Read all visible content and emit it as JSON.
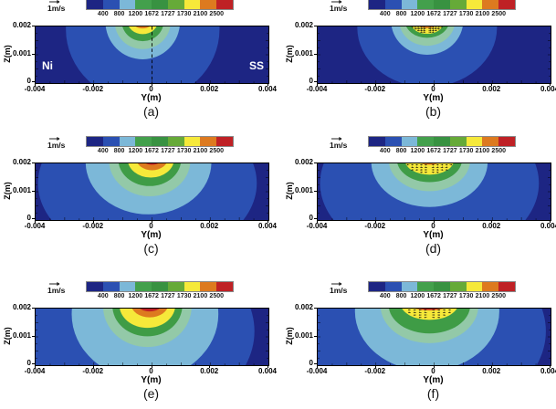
{
  "palette": {
    "navy": "#1d2583",
    "blue": "#2b50b2",
    "lightblue": "#7cb8d8",
    "seafoam": "#93c9a8",
    "green1": "#43a04c",
    "green2": "#389241",
    "green3": "#66aa38",
    "green": "#3f9c46",
    "yellow": "#f6e93a",
    "orange": "#dd7a1f",
    "red": "#bf2125",
    "vector_arrow": "#222222",
    "annotation_text": "#ffffff"
  },
  "chart_data": {
    "type": "contour",
    "figure_kind": "temperature contour cross-sections of weld pool with velocity vectors",
    "x_label": "Y(m)",
    "y_label": "Z(m)",
    "x_range": [
      -0.004,
      0.004
    ],
    "y_range": [
      0,
      0.002
    ],
    "x_tick_labels": [
      "-0.004",
      "-0.002",
      "0",
      "0.002",
      "0.004"
    ],
    "y_tick_labels": [
      "0.002",
      "0.001",
      "0"
    ],
    "contour_levels": [
      400,
      800,
      1200,
      1672,
      1727,
      1730,
      2100,
      2500
    ],
    "colorbar_tick_labels": [
      "400",
      "800",
      "1200",
      "1672",
      "1727",
      "1730",
      "2100",
      "2500"
    ],
    "colorbar_segment_colors": [
      "navy",
      "blue",
      "lightblue",
      "green1",
      "green2",
      "green3",
      "yellow",
      "orange",
      "red"
    ],
    "vector_scale_label": "1m/s",
    "subplots": [
      {
        "letter": "(a)",
        "annotations": {
          "left": "Ni",
          "right": "SS"
        },
        "has_velocity_vectors": false,
        "has_center_dashed_line": true,
        "background": "navy",
        "layers": [
          {
            "color": "blue",
            "cx": 0.46,
            "cy": 0.05,
            "rx": 0.33,
            "ry": 1.28
          },
          {
            "color": "lightblue",
            "cx": 0.46,
            "cy": -0.08,
            "rx": 0.16,
            "ry": 0.66
          },
          {
            "color": "seafoam",
            "cx": 0.46,
            "cy": -0.08,
            "rx": 0.12,
            "ry": 0.48
          },
          {
            "color": "green",
            "cx": 0.46,
            "cy": -0.09,
            "rx": 0.09,
            "ry": 0.35
          },
          {
            "color": "yellow",
            "cx": 0.46,
            "cy": -0.1,
            "rx": 0.066,
            "ry": 0.235
          },
          {
            "color": "orange",
            "cx": 0.46,
            "cy": -0.11,
            "rx": 0.046,
            "ry": 0.145
          },
          {
            "color": "red",
            "cx": 0.465,
            "cy": -0.1,
            "rx": 0.028,
            "ry": 0.075
          }
        ],
        "arrows": null
      },
      {
        "letter": "(b)",
        "annotations": null,
        "has_velocity_vectors": true,
        "has_center_dashed_line": false,
        "background": "navy",
        "layers": [
          {
            "color": "blue",
            "cx": 0.47,
            "cy": 0.02,
            "rx": 0.3,
            "ry": 1.05
          },
          {
            "color": "lightblue",
            "cx": 0.47,
            "cy": -0.1,
            "rx": 0.155,
            "ry": 0.6
          },
          {
            "color": "seafoam",
            "cx": 0.47,
            "cy": -0.1,
            "rx": 0.12,
            "ry": 0.44
          },
          {
            "color": "green",
            "cx": 0.47,
            "cy": -0.1,
            "rx": 0.095,
            "ry": 0.3
          },
          {
            "color": "yellow",
            "cx": 0.47,
            "cy": -0.05,
            "rx": 0.068,
            "ry": 0.18
          },
          {
            "color": "orange",
            "cx": 0.47,
            "cy": -0.07,
            "rx": 0.045,
            "ry": 0.1
          }
        ],
        "arrows": {
          "cx": 0.47,
          "cy": -0.05,
          "rx": 0.065,
          "ry": 0.17
        }
      },
      {
        "letter": "(c)",
        "annotations": null,
        "has_velocity_vectors": false,
        "has_center_dashed_line": false,
        "background": "navy",
        "layers": [
          {
            "color": "blue",
            "cx": 0.48,
            "cy": 0.35,
            "rx": 0.47,
            "ry": 1.35
          },
          {
            "color": "lightblue",
            "cx": 0.485,
            "cy": -0.02,
            "rx": 0.27,
            "ry": 0.92
          },
          {
            "color": "seafoam",
            "cx": 0.49,
            "cy": -0.06,
            "rx": 0.175,
            "ry": 0.64
          },
          {
            "color": "green",
            "cx": 0.49,
            "cy": -0.07,
            "rx": 0.135,
            "ry": 0.47
          },
          {
            "color": "yellow",
            "cx": 0.495,
            "cy": -0.08,
            "rx": 0.1,
            "ry": 0.33
          },
          {
            "color": "orange",
            "cx": 0.5,
            "cy": -0.09,
            "rx": 0.068,
            "ry": 0.21
          },
          {
            "color": "red",
            "cx": 0.5,
            "cy": -0.09,
            "rx": 0.043,
            "ry": 0.115
          }
        ],
        "arrows": null
      },
      {
        "letter": "(d)",
        "annotations": null,
        "has_velocity_vectors": true,
        "has_center_dashed_line": false,
        "background": "navy",
        "layers": [
          {
            "color": "blue",
            "cx": 0.48,
            "cy": 0.35,
            "rx": 0.47,
            "ry": 1.35
          },
          {
            "color": "lightblue",
            "cx": 0.48,
            "cy": -0.03,
            "rx": 0.25,
            "ry": 0.8
          },
          {
            "color": "seafoam",
            "cx": 0.48,
            "cy": -0.06,
            "rx": 0.175,
            "ry": 0.55
          },
          {
            "color": "green",
            "cx": 0.48,
            "cy": -0.07,
            "rx": 0.14,
            "ry": 0.4
          },
          {
            "color": "yellow",
            "cx": 0.48,
            "cy": -0.06,
            "rx": 0.105,
            "ry": 0.26
          },
          {
            "color": "orange",
            "cx": 0.48,
            "cy": -0.06,
            "rx": 0.05,
            "ry": 0.085
          }
        ],
        "arrows": {
          "cx": 0.48,
          "cy": -0.06,
          "rx": 0.1,
          "ry": 0.25
        }
      },
      {
        "letter": "(e)",
        "annotations": null,
        "has_velocity_vectors": false,
        "has_center_dashed_line": false,
        "background": "navy",
        "layers": [
          {
            "color": "blue",
            "cx": 0.42,
            "cy": 0.4,
            "rx": 0.52,
            "ry": 1.6
          },
          {
            "color": "lightblue",
            "cx": 0.47,
            "cy": 0.1,
            "rx": 0.315,
            "ry": 1.15
          },
          {
            "color": "seafoam",
            "cx": 0.48,
            "cy": -0.04,
            "rx": 0.19,
            "ry": 0.72
          },
          {
            "color": "green",
            "cx": 0.48,
            "cy": -0.05,
            "rx": 0.15,
            "ry": 0.54
          },
          {
            "color": "yellow",
            "cx": 0.48,
            "cy": -0.06,
            "rx": 0.12,
            "ry": 0.4
          },
          {
            "color": "orange",
            "cx": 0.49,
            "cy": -0.08,
            "rx": 0.08,
            "ry": 0.235
          },
          {
            "color": "red",
            "cx": 0.49,
            "cy": -0.08,
            "rx": 0.053,
            "ry": 0.13
          }
        ],
        "arrows": null
      },
      {
        "letter": "(f)",
        "annotations": null,
        "has_velocity_vectors": true,
        "has_center_dashed_line": false,
        "background": "navy",
        "layers": [
          {
            "color": "blue",
            "cx": 0.44,
            "cy": 0.4,
            "rx": 0.54,
            "ry": 1.6
          },
          {
            "color": "lightblue",
            "cx": 0.47,
            "cy": 0.05,
            "rx": 0.31,
            "ry": 1.05
          },
          {
            "color": "seafoam",
            "cx": 0.48,
            "cy": -0.05,
            "rx": 0.21,
            "ry": 0.66
          },
          {
            "color": "green",
            "cx": 0.48,
            "cy": -0.06,
            "rx": 0.175,
            "ry": 0.5
          },
          {
            "color": "yellow",
            "cx": 0.48,
            "cy": -0.1,
            "rx": 0.125,
            "ry": 0.3
          },
          {
            "color": "orange",
            "cx": 0.48,
            "cy": -0.12,
            "rx": 0.1,
            "ry": 0.155
          },
          {
            "color": "red",
            "cx": 0.48,
            "cy": -0.13,
            "rx": 0.085,
            "ry": 0.15
          }
        ],
        "arrows": {
          "cx": 0.48,
          "cy": -0.1,
          "rx": 0.12,
          "ry": 0.29
        }
      }
    ]
  }
}
